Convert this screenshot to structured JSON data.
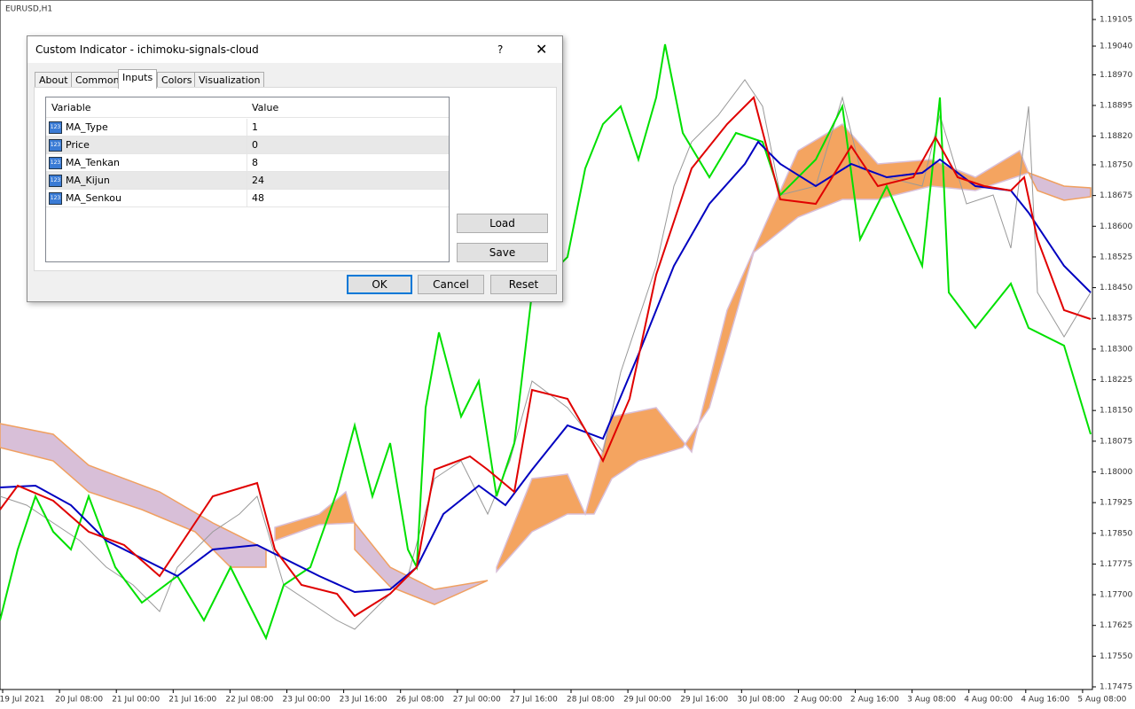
{
  "chart_label": "EURUSD,H1",
  "price_axis": {
    "ylim": [
      1.17475,
      1.19105
    ],
    "ticks": [
      {
        "value": 1.19105,
        "label": "1.19105"
      },
      {
        "value": 1.1904,
        "label": "1.19040"
      },
      {
        "value": 1.1897,
        "label": "1.18970"
      },
      {
        "value": 1.18895,
        "label": "1.18895"
      },
      {
        "value": 1.1882,
        "label": "1.18820"
      },
      {
        "value": 1.1875,
        "label": "1.18750"
      },
      {
        "value": 1.18675,
        "label": "1.18675"
      },
      {
        "value": 1.186,
        "label": "1.18600"
      },
      {
        "value": 1.18525,
        "label": "1.18525"
      },
      {
        "value": 1.1845,
        "label": "1.18450"
      },
      {
        "value": 1.18375,
        "label": "1.18375"
      },
      {
        "value": 1.183,
        "label": "1.18300"
      },
      {
        "value": 1.18225,
        "label": "1.18225"
      },
      {
        "value": 1.1815,
        "label": "1.18150"
      },
      {
        "value": 1.18075,
        "label": "1.18075"
      },
      {
        "value": 1.18,
        "label": "1.18000"
      },
      {
        "value": 1.17925,
        "label": "1.17925"
      },
      {
        "value": 1.1785,
        "label": "1.17850"
      },
      {
        "value": 1.17775,
        "label": "1.17775"
      },
      {
        "value": 1.177,
        "label": "1.17700"
      },
      {
        "value": 1.17625,
        "label": "1.17625"
      },
      {
        "value": 1.1755,
        "label": "1.17550"
      },
      {
        "value": 1.17475,
        "label": "1.17475"
      }
    ]
  },
  "time_axis": {
    "labels": [
      "19 Jul 2021",
      "20 Jul 08:00",
      "21 Jul 00:00",
      "21 Jul 16:00",
      "22 Jul 08:00",
      "23 Jul 00:00",
      "23 Jul 16:00",
      "26 Jul 08:00",
      "27 Jul 00:00",
      "27 Jul 16:00",
      "28 Jul 08:00",
      "29 Jul 00:00",
      "29 Jul 16:00",
      "30 Jul 08:00",
      "2 Aug 00:00",
      "2 Aug 16:00",
      "3 Aug 08:00",
      "4 Aug 00:00",
      "4 Aug 16:00",
      "5 Aug 08:00"
    ]
  },
  "dialog": {
    "title": "Custom Indicator - ichimoku-signals-cloud",
    "help": "?",
    "tabs": [
      "About",
      "Common",
      "Inputs",
      "Colors",
      "Visualization"
    ],
    "table": {
      "columns": [
        "Variable",
        "Value"
      ],
      "rows": [
        [
          "MA_Type",
          1
        ],
        [
          "Price",
          0
        ],
        [
          "MA_Tenkan",
          8
        ],
        [
          "MA_Kijun",
          24
        ],
        [
          "MA_Senkou",
          48
        ]
      ]
    },
    "buttons": {
      "load": "Load",
      "save": "Save",
      "ok": "OK",
      "cancel": "Cancel",
      "reset": "Reset"
    }
  }
}
